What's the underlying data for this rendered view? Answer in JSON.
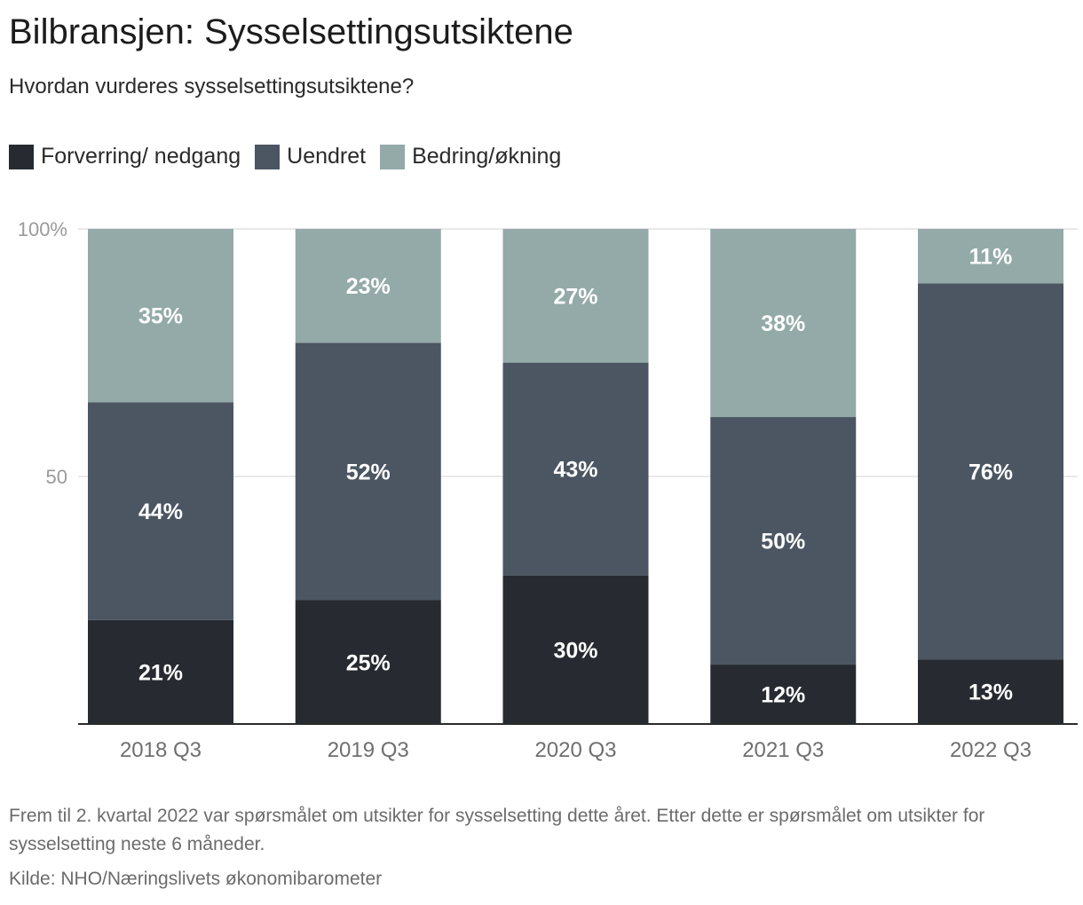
{
  "chart_data": {
    "type": "bar",
    "stacked": true,
    "title": "Bilbransjen: Sysselsettingsutsiktene",
    "subtitle": "Hvordan vurderes sysselsettingsutsiktene?",
    "categories": [
      "2018 Q3",
      "2019 Q3",
      "2020 Q3",
      "2021 Q3",
      "2022 Q3"
    ],
    "series": [
      {
        "name": "Forverring/ nedgang",
        "color": "#272b31",
        "values": [
          21,
          25,
          30,
          12,
          13
        ],
        "labels": [
          "21%",
          "25%",
          "30%",
          "12%",
          "13%"
        ]
      },
      {
        "name": "Uendret",
        "color": "#4b5662",
        "values": [
          44,
          52,
          43,
          50,
          76
        ],
        "labels": [
          "44%",
          "52%",
          "43%",
          "50%",
          "76%"
        ]
      },
      {
        "name": "Bedring/økning",
        "color": "#93aaa8",
        "values": [
          35,
          23,
          27,
          38,
          11
        ],
        "labels": [
          "35%",
          "23%",
          "27%",
          "38%",
          "11%"
        ]
      }
    ],
    "ylim": [
      0,
      100
    ],
    "yticks": [
      {
        "value": 100,
        "label": "100%"
      },
      {
        "value": 50,
        "label": "50"
      }
    ],
    "grid": true,
    "legend_position": "top-left",
    "xlabel": "",
    "ylabel": ""
  },
  "notes": "Frem til 2. kvartal 2022 var spørsmålet om utsikter for sysselsetting dette året. Etter dette er spørsmålet om utsikter for sysselsetting neste 6 måneder.",
  "source": "Kilde: NHO/Næringslivets økonomibarometer"
}
